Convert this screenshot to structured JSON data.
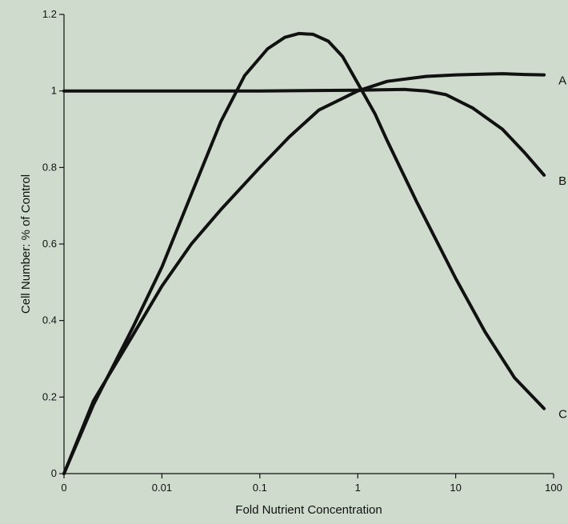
{
  "chart_data": {
    "type": "line",
    "title": "",
    "xlabel": "Fold Nutrient Concentration",
    "ylabel": "Cell Number: % of Control",
    "x_scale": "log",
    "xlim": [
      0.001,
      100
    ],
    "ylim": [
      0,
      1.2
    ],
    "x_ticks": [
      {
        "value": 0.001,
        "label": "0"
      },
      {
        "value": 0.01,
        "label": "0.01"
      },
      {
        "value": 0.1,
        "label": "0.1"
      },
      {
        "value": 1,
        "label": "1"
      },
      {
        "value": 10,
        "label": "10"
      },
      {
        "value": 100,
        "label": "100"
      }
    ],
    "y_ticks": [
      {
        "value": 0,
        "label": "0"
      },
      {
        "value": 0.2,
        "label": "0.2"
      },
      {
        "value": 0.4,
        "label": "0.4"
      },
      {
        "value": 0.6,
        "label": "0.6"
      },
      {
        "value": 0.8,
        "label": "0.8"
      },
      {
        "value": 1,
        "label": "1"
      },
      {
        "value": 1.2,
        "label": "1.2"
      }
    ],
    "grid": false,
    "legend": "none",
    "series": [
      {
        "name": "A",
        "points": [
          [
            0.001,
            0
          ],
          [
            0.002,
            0.19
          ],
          [
            0.005,
            0.36
          ],
          [
            0.01,
            0.49
          ],
          [
            0.02,
            0.6
          ],
          [
            0.04,
            0.69
          ],
          [
            0.1,
            0.8
          ],
          [
            0.2,
            0.88
          ],
          [
            0.4,
            0.95
          ],
          [
            1,
            1.0
          ],
          [
            2,
            1.025
          ],
          [
            5,
            1.038
          ],
          [
            10,
            1.042
          ],
          [
            20,
            1.044
          ],
          [
            30,
            1.045
          ],
          [
            50,
            1.043
          ],
          [
            80,
            1.042
          ]
        ]
      },
      {
        "name": "B",
        "points": [
          [
            0.001,
            1.0
          ],
          [
            0.01,
            1.0
          ],
          [
            0.1,
            1.0
          ],
          [
            1,
            1.002
          ],
          [
            3,
            1.004
          ],
          [
            5,
            1.0
          ],
          [
            8,
            0.99
          ],
          [
            15,
            0.955
          ],
          [
            30,
            0.9
          ],
          [
            50,
            0.84
          ],
          [
            80,
            0.78
          ]
        ]
      },
      {
        "name": "C",
        "points": [
          [
            0.001,
            0
          ],
          [
            0.002,
            0.18
          ],
          [
            0.005,
            0.38
          ],
          [
            0.01,
            0.54
          ],
          [
            0.02,
            0.73
          ],
          [
            0.04,
            0.92
          ],
          [
            0.07,
            1.04
          ],
          [
            0.12,
            1.11
          ],
          [
            0.18,
            1.14
          ],
          [
            0.25,
            1.15
          ],
          [
            0.35,
            1.148
          ],
          [
            0.5,
            1.13
          ],
          [
            0.7,
            1.09
          ],
          [
            1,
            1.02
          ],
          [
            1.5,
            0.94
          ],
          [
            2,
            0.87
          ],
          [
            4,
            0.71
          ],
          [
            10,
            0.51
          ],
          [
            20,
            0.37
          ],
          [
            40,
            0.25
          ],
          [
            80,
            0.17
          ]
        ]
      }
    ],
    "line_color": "#111111",
    "background_color": "#cfdccd"
  }
}
